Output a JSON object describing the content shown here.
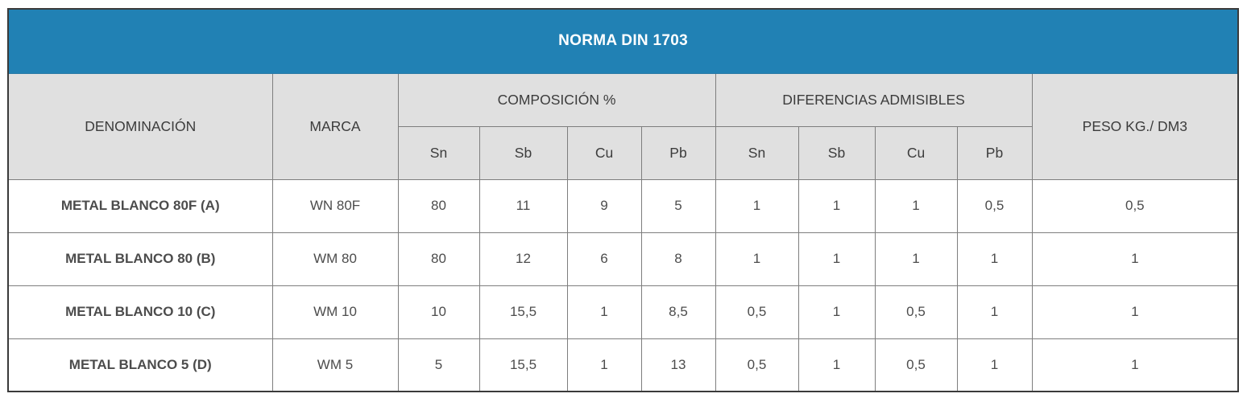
{
  "colors": {
    "accent_blue": "#2181b4",
    "header_gray": "#e0e0e0",
    "outer_border": "#3a3a3a",
    "grid_border": "#7e7e7e",
    "title_text": "#ffffff",
    "header_text": "#3c3c3c",
    "body_text": "#4c4c4c"
  },
  "chart_data": {
    "type": "table",
    "title": "NORMA DIN 1703",
    "headers": {
      "denominacion": "DENOMINACIÓN",
      "marca": "MARCA",
      "composicion_group": "COMPOSICIÓN %",
      "diferencias_group": "DIFERENCIAS ADMISIBLES",
      "peso": "PESO KG./ DM3",
      "element_columns": [
        "Sn",
        "Sb",
        "Cu",
        "Pb"
      ]
    },
    "rows": [
      {
        "denominacion": "METAL BLANCO 80F (A)",
        "marca": "WN 80F",
        "composicion": {
          "Sn": "80",
          "Sb": "11",
          "Cu": "9",
          "Pb": "5"
        },
        "diferencias": {
          "Sn": "1",
          "Sb": "1",
          "Cu": "1",
          "Pb": "0,5"
        },
        "peso": "0,5"
      },
      {
        "denominacion": "METAL BLANCO 80 (B)",
        "marca": "WM 80",
        "composicion": {
          "Sn": "80",
          "Sb": "12",
          "Cu": "6",
          "Pb": "8"
        },
        "diferencias": {
          "Sn": "1",
          "Sb": "1",
          "Cu": "1",
          "Pb": "1"
        },
        "peso": "1"
      },
      {
        "denominacion": "METAL BLANCO 10 (C)",
        "marca": "WM 10",
        "composicion": {
          "Sn": "10",
          "Sb": "15,5",
          "Cu": "1",
          "Pb": "8,5"
        },
        "diferencias": {
          "Sn": "0,5",
          "Sb": "1",
          "Cu": "0,5",
          "Pb": "1"
        },
        "peso": "1"
      },
      {
        "denominacion": "METAL BLANCO 5 (D)",
        "marca": "WM 5",
        "composicion": {
          "Sn": "5",
          "Sb": "15,5",
          "Cu": "1",
          "Pb": "13"
        },
        "diferencias": {
          "Sn": "0,5",
          "Sb": "1",
          "Cu": "0,5",
          "Pb": "1"
        },
        "peso": "1"
      }
    ]
  }
}
